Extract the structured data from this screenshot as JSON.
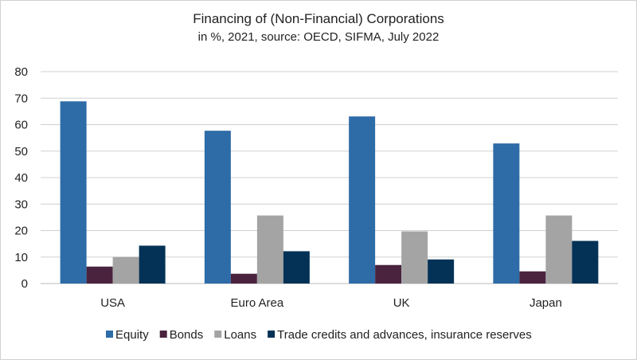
{
  "chart_data": {
    "type": "bar",
    "title": "Financing of (Non-Financial) Corporations",
    "subtitle": "in %, 2021, source: OECD, SIFMA, July 2022",
    "categories": [
      "USA",
      "Euro Area",
      "UK",
      "Japan"
    ],
    "series": [
      {
        "name": "Equity",
        "color": "#2e6ca8",
        "values": [
          68.8,
          57.7,
          63.1,
          52.9
        ]
      },
      {
        "name": "Bonds",
        "color": "#4a233f",
        "values": [
          6.4,
          3.7,
          7.0,
          4.6
        ]
      },
      {
        "name": "Loans",
        "color": "#a3a4a3",
        "values": [
          10.0,
          25.7,
          19.7,
          25.7
        ]
      },
      {
        "name": "Trade credits and advances, insurance reserves",
        "color": "#033256",
        "values": [
          14.3,
          12.2,
          9.1,
          16.1
        ]
      }
    ],
    "ylim": [
      0,
      80
    ],
    "yticks": [
      0,
      10,
      20,
      30,
      40,
      50,
      60,
      70,
      80
    ],
    "grid": true,
    "legend": "bottom",
    "xlabel": "",
    "ylabel": ""
  }
}
